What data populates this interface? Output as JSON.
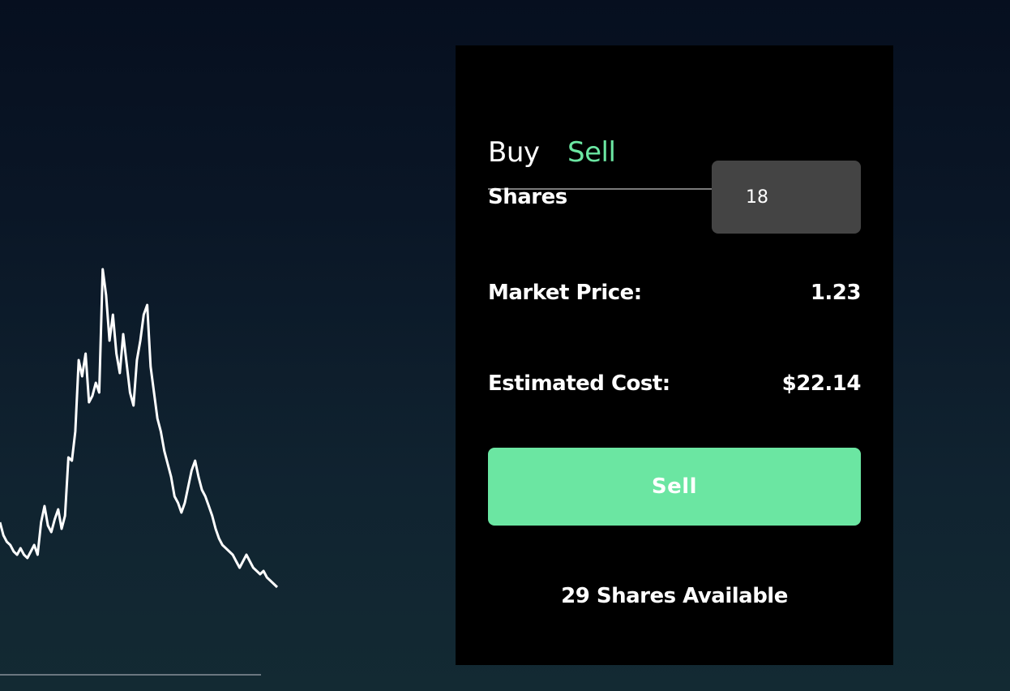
{
  "trade_panel": {
    "tabs": [
      {
        "label": "Buy",
        "active": false
      },
      {
        "label": "Sell",
        "active": true
      }
    ],
    "shares": {
      "label": "Shares",
      "value": "18"
    },
    "market_price": {
      "label": "Market Price:",
      "value": "1.23"
    },
    "estimated_cost": {
      "label": "Estimated Cost:",
      "value": "$22.14"
    },
    "submit_label": "Sell",
    "available_text": "29 Shares Available"
  },
  "colors": {
    "accent": "#6be6a2",
    "panel_bg": "#000000",
    "input_bg": "#444444",
    "line": "#ffffff"
  },
  "chart_data": {
    "type": "line",
    "title": "",
    "xlabel": "",
    "ylabel": "",
    "grid": false,
    "legend": "none",
    "ylim": [
      0,
      1
    ],
    "series": [
      {
        "values": [
          0.22,
          0.18,
          0.16,
          0.15,
          0.13,
          0.12,
          0.14,
          0.12,
          0.11,
          0.13,
          0.15,
          0.12,
          0.22,
          0.27,
          0.21,
          0.19,
          0.23,
          0.26,
          0.2,
          0.24,
          0.42,
          0.41,
          0.5,
          0.72,
          0.67,
          0.74,
          0.59,
          0.61,
          0.65,
          0.62,
          1.0,
          0.92,
          0.78,
          0.86,
          0.74,
          0.68,
          0.8,
          0.71,
          0.62,
          0.58,
          0.72,
          0.78,
          0.86,
          0.89,
          0.7,
          0.62,
          0.54,
          0.5,
          0.44,
          0.4,
          0.36,
          0.3,
          0.28,
          0.25,
          0.28,
          0.33,
          0.38,
          0.41,
          0.36,
          0.32,
          0.3,
          0.27,
          0.24,
          0.2,
          0.17,
          0.15,
          0.14,
          0.13,
          0.12,
          0.1,
          0.08,
          0.1,
          0.12,
          0.1,
          0.08,
          0.07,
          0.06,
          0.07,
          0.05,
          0.04,
          0.03,
          0.02
        ]
      }
    ]
  }
}
